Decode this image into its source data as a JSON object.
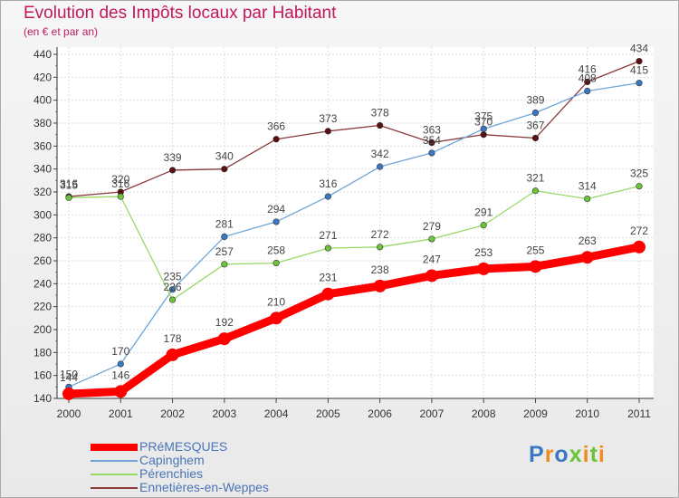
{
  "chart_data": {
    "type": "line",
    "title": "Evolution des Impôts locaux par Habitant",
    "subtitle": "(en € et par an)",
    "xlabel": "",
    "ylabel": "",
    "categories": [
      "2000",
      "2001",
      "2002",
      "2003",
      "2004",
      "2005",
      "2006",
      "2007",
      "2008",
      "2009",
      "2010",
      "2011"
    ],
    "ylim": [
      140,
      440
    ],
    "yticks": [
      140,
      160,
      180,
      200,
      220,
      240,
      260,
      280,
      300,
      320,
      340,
      360,
      380,
      400,
      420,
      440
    ],
    "grid": true,
    "legend_position": "bottom-left",
    "series": [
      {
        "name": "Ennetières-en-Weppes",
        "color": "#8b3a3a",
        "marker": "#5a1010",
        "values": [
          316,
          320,
          339,
          340,
          366,
          373,
          378,
          363,
          370,
          367,
          416,
          434
        ]
      },
      {
        "name": "Capinghem",
        "color": "#6fa4d8",
        "marker": "#3a78c4",
        "values": [
          150,
          170,
          235,
          281,
          294,
          316,
          342,
          354,
          375,
          389,
          408,
          415
        ]
      },
      {
        "name": "Pérenchies",
        "color": "#9ad86a",
        "marker": "#6cc43a",
        "values": [
          315,
          316,
          226,
          257,
          258,
          271,
          272,
          279,
          291,
          321,
          314,
          325
        ]
      },
      {
        "name": "PRéMESQUES",
        "color": "#ff0000",
        "marker": "#ff0000",
        "values": [
          144,
          146,
          178,
          192,
          210,
          231,
          238,
          247,
          253,
          255,
          263,
          272
        ]
      }
    ]
  },
  "logo": {
    "text": "Proxiti",
    "colors": [
      "#3a78c4",
      "#f08c1a",
      "#3a78c4",
      "#6cc43a",
      "#f08c1a",
      "#6cc43a",
      "#f08c1a"
    ]
  }
}
